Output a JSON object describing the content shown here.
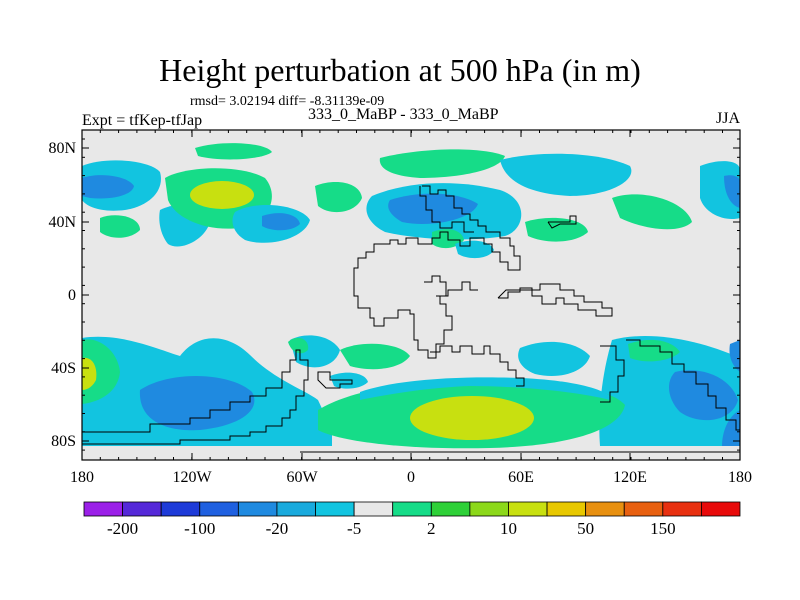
{
  "title": "Height perturbation at 500 hPa (in m)",
  "stats_label": "rmsd= 3.02194  diff= -8.31139e-09",
  "experiment_label": "Expt = tfKep-tfJap",
  "center_label": "333_0_MaBP - 333_0_MaBP",
  "season_label": "JJA",
  "lat_ticks": [
    "80N",
    "40N",
    "0",
    "40S",
    "80S"
  ],
  "lon_ticks": [
    "180",
    "120W",
    "60W",
    "0",
    "60E",
    "120E",
    "180"
  ],
  "colorbar": {
    "colors": [
      "#9b20e8",
      "#5528d8",
      "#1e3bd8",
      "#1f60e0",
      "#1f8ae0",
      "#19aadd",
      "#12c4e0",
      "#e8e8e8",
      "#16dc88",
      "#2ed038",
      "#8cd81a",
      "#c8e010",
      "#e8c800",
      "#e89010",
      "#e86010",
      "#e83010",
      "#e80a0a"
    ],
    "labels": [
      "-200",
      "-100",
      "-20",
      "-5",
      "2",
      "10",
      "50",
      "150"
    ]
  },
  "map_colors": {
    "background": "#e8e8e8",
    "cyan": "#12c4e0",
    "blue": "#1f8ae0",
    "green": "#16dc88",
    "lime": "#c8e010"
  }
}
